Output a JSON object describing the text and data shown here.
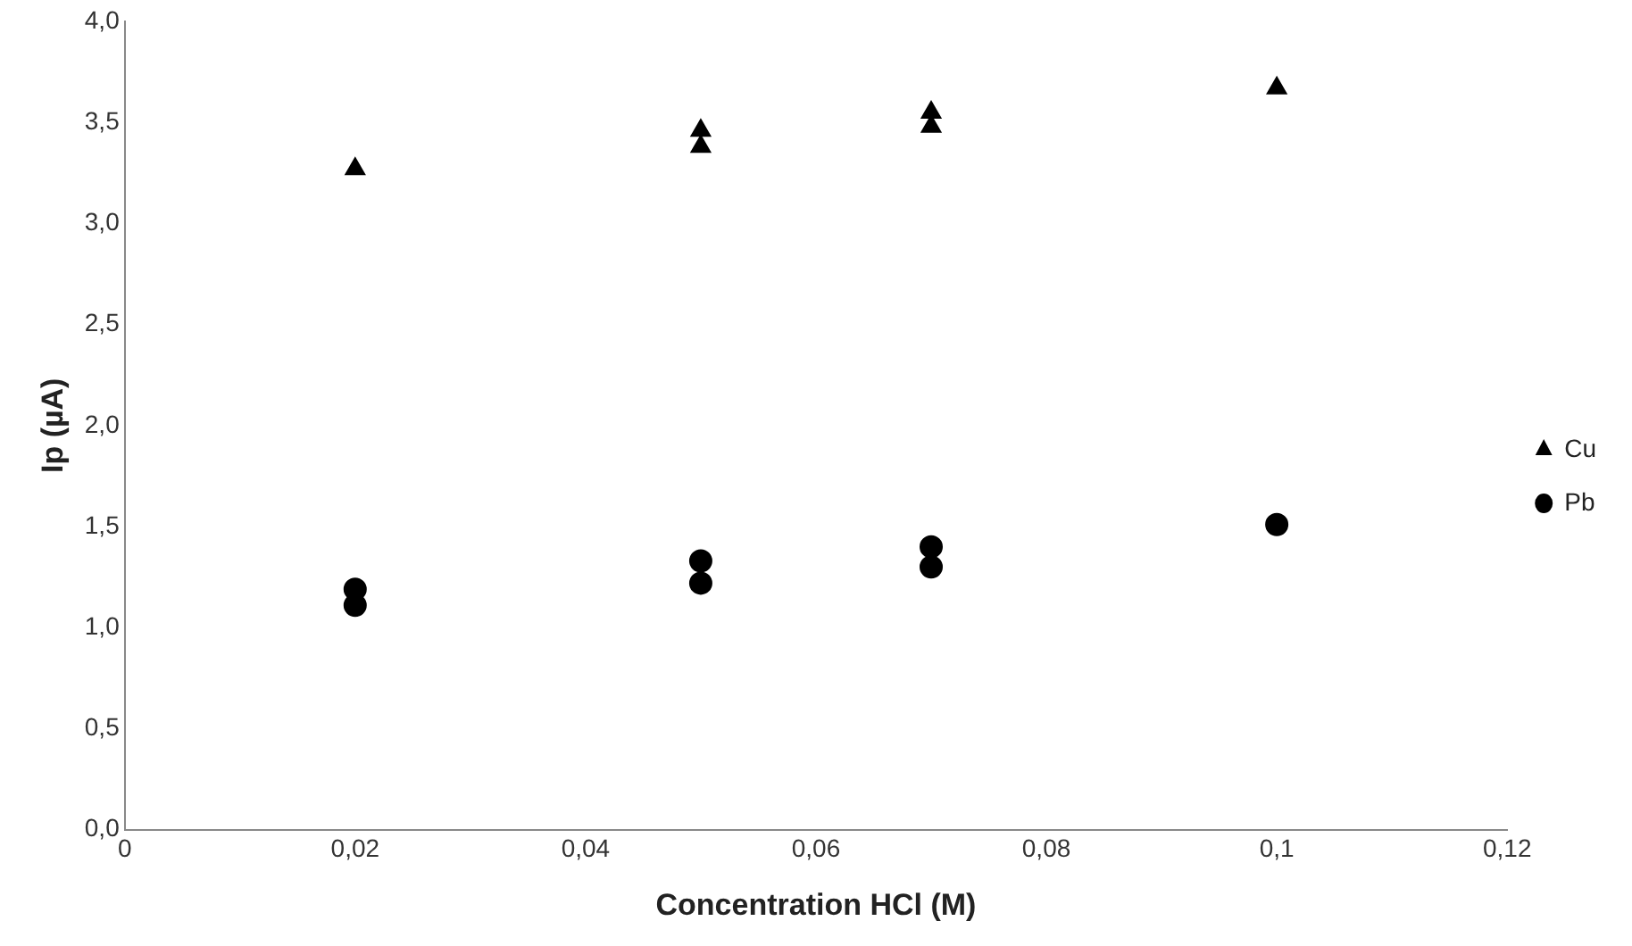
{
  "chart_data": {
    "type": "scatter",
    "xlabel": "Concentration HCl (M)",
    "ylabel": "Ip (µA)",
    "series": [
      {
        "name": "Cu",
        "color": "#000000",
        "marker": "triangle",
        "x": [
          0.02,
          0.05,
          0.05,
          0.07,
          0.07,
          0.1
        ],
        "values": [
          3.27,
          3.46,
          3.38,
          3.55,
          3.48,
          3.67
        ]
      },
      {
        "name": "Pb",
        "color": "#000000",
        "marker": "circle",
        "x": [
          0.02,
          0.02,
          0.05,
          0.05,
          0.07,
          0.07,
          0.1
        ],
        "values": [
          1.19,
          1.11,
          1.33,
          1.22,
          1.4,
          1.3,
          1.51
        ]
      }
    ],
    "xlim": [
      0,
      0.12
    ],
    "xticks": [
      0,
      {
        "value": 0.02,
        "label": "0,02"
      },
      {
        "value": 0.04,
        "label": "0,04"
      },
      {
        "value": 0.06,
        "label": "0,06"
      },
      {
        "value": 0.08,
        "label": "0,08"
      },
      {
        "value": 0.1,
        "label": "0,1"
      },
      {
        "value": 0.12,
        "label": "0,12"
      }
    ],
    "ylim": [
      0,
      4
    ],
    "yticks": [
      {
        "value": 0,
        "label": "0,0"
      },
      {
        "value": 0.5,
        "label": "0,5"
      },
      {
        "value": 1,
        "label": "1,0"
      },
      {
        "value": 1.5,
        "label": "1,5"
      },
      {
        "value": 2,
        "label": "2,0"
      },
      {
        "value": 2.5,
        "label": "2,5"
      },
      {
        "value": 3,
        "label": "3,0"
      },
      {
        "value": 3.5,
        "label": "3,5"
      },
      {
        "value": 4,
        "label": "4,0"
      }
    ],
    "grid": false,
    "legend": "right"
  }
}
